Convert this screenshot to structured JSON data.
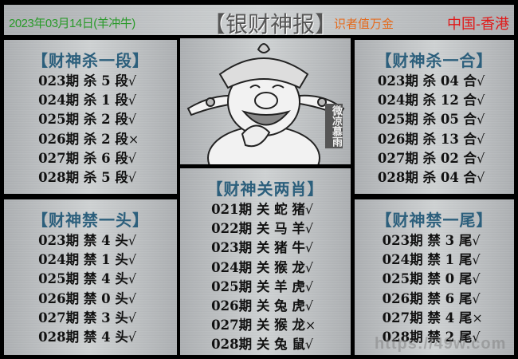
{
  "header": {
    "date": "2023年03月14日(羊冲牛)",
    "title": "【银财神报】",
    "slogan": "识者值万金",
    "region": "中国-香港"
  },
  "image": {
    "stamp": "微凉慕雨"
  },
  "watermark": "https://49w.com",
  "panels": [
    {
      "id": "kill-segment",
      "title": "【财神杀一段】",
      "rows": [
        {
          "text": "023期 杀 5 段",
          "mark": "√"
        },
        {
          "text": "024期 杀 1 段",
          "mark": "√"
        },
        {
          "text": "025期 杀 2 段",
          "mark": "√"
        },
        {
          "text": "026期 杀 2 段",
          "mark": "×"
        },
        {
          "text": "027期 杀 6 段",
          "mark": "√"
        },
        {
          "text": "028期 杀 5 段",
          "mark": "√"
        }
      ]
    },
    {
      "id": "ban-head",
      "title": "【财神禁一头】",
      "rows": [
        {
          "text": "023期 禁 4 头",
          "mark": "√"
        },
        {
          "text": "024期 禁 1 头",
          "mark": "√"
        },
        {
          "text": "025期 禁 4 头",
          "mark": "√"
        },
        {
          "text": "026期 禁 0 头",
          "mark": "√"
        },
        {
          "text": "027期 禁 3 头",
          "mark": "√"
        },
        {
          "text": "028期 禁 4 头",
          "mark": "√"
        }
      ]
    },
    {
      "id": "close-two-zodiacs",
      "title": "【财神关两肖】",
      "rows": [
        {
          "text": "021期 关 蛇 猪",
          "mark": "√"
        },
        {
          "text": "022期 关 马 羊",
          "mark": "√"
        },
        {
          "text": "023期 关 猪 牛",
          "mark": "√"
        },
        {
          "text": "024期 关 猴 龙",
          "mark": "√"
        },
        {
          "text": "025期 关 羊 虎",
          "mark": "√"
        },
        {
          "text": "026期 关 兔 虎",
          "mark": "√"
        },
        {
          "text": "027期 关 猴 龙",
          "mark": "×"
        },
        {
          "text": "028期 关 兔 鼠",
          "mark": "√"
        }
      ]
    },
    {
      "id": "kill-combo",
      "title": "【财神杀一合】",
      "rows": [
        {
          "text": "023期 杀 04 合",
          "mark": "√"
        },
        {
          "text": "024期 杀 12 合",
          "mark": "√"
        },
        {
          "text": "025期 杀 05 合",
          "mark": "√"
        },
        {
          "text": "026期 杀 13 合",
          "mark": "√"
        },
        {
          "text": "027期 杀 02 合",
          "mark": "√"
        },
        {
          "text": "028期 杀 04 合",
          "mark": "√"
        }
      ]
    },
    {
      "id": "ban-tail",
      "title": "【财神禁一尾】",
      "rows": [
        {
          "text": "023期 禁 3 尾",
          "mark": "√"
        },
        {
          "text": "024期 禁 1 尾",
          "mark": "√"
        },
        {
          "text": "025期 禁 0 尾",
          "mark": "√"
        },
        {
          "text": "026期 禁 6 尾",
          "mark": "√"
        },
        {
          "text": "027期 禁 4 尾",
          "mark": "×"
        },
        {
          "text": "028期 禁 2 尾",
          "mark": "√"
        }
      ]
    }
  ]
}
